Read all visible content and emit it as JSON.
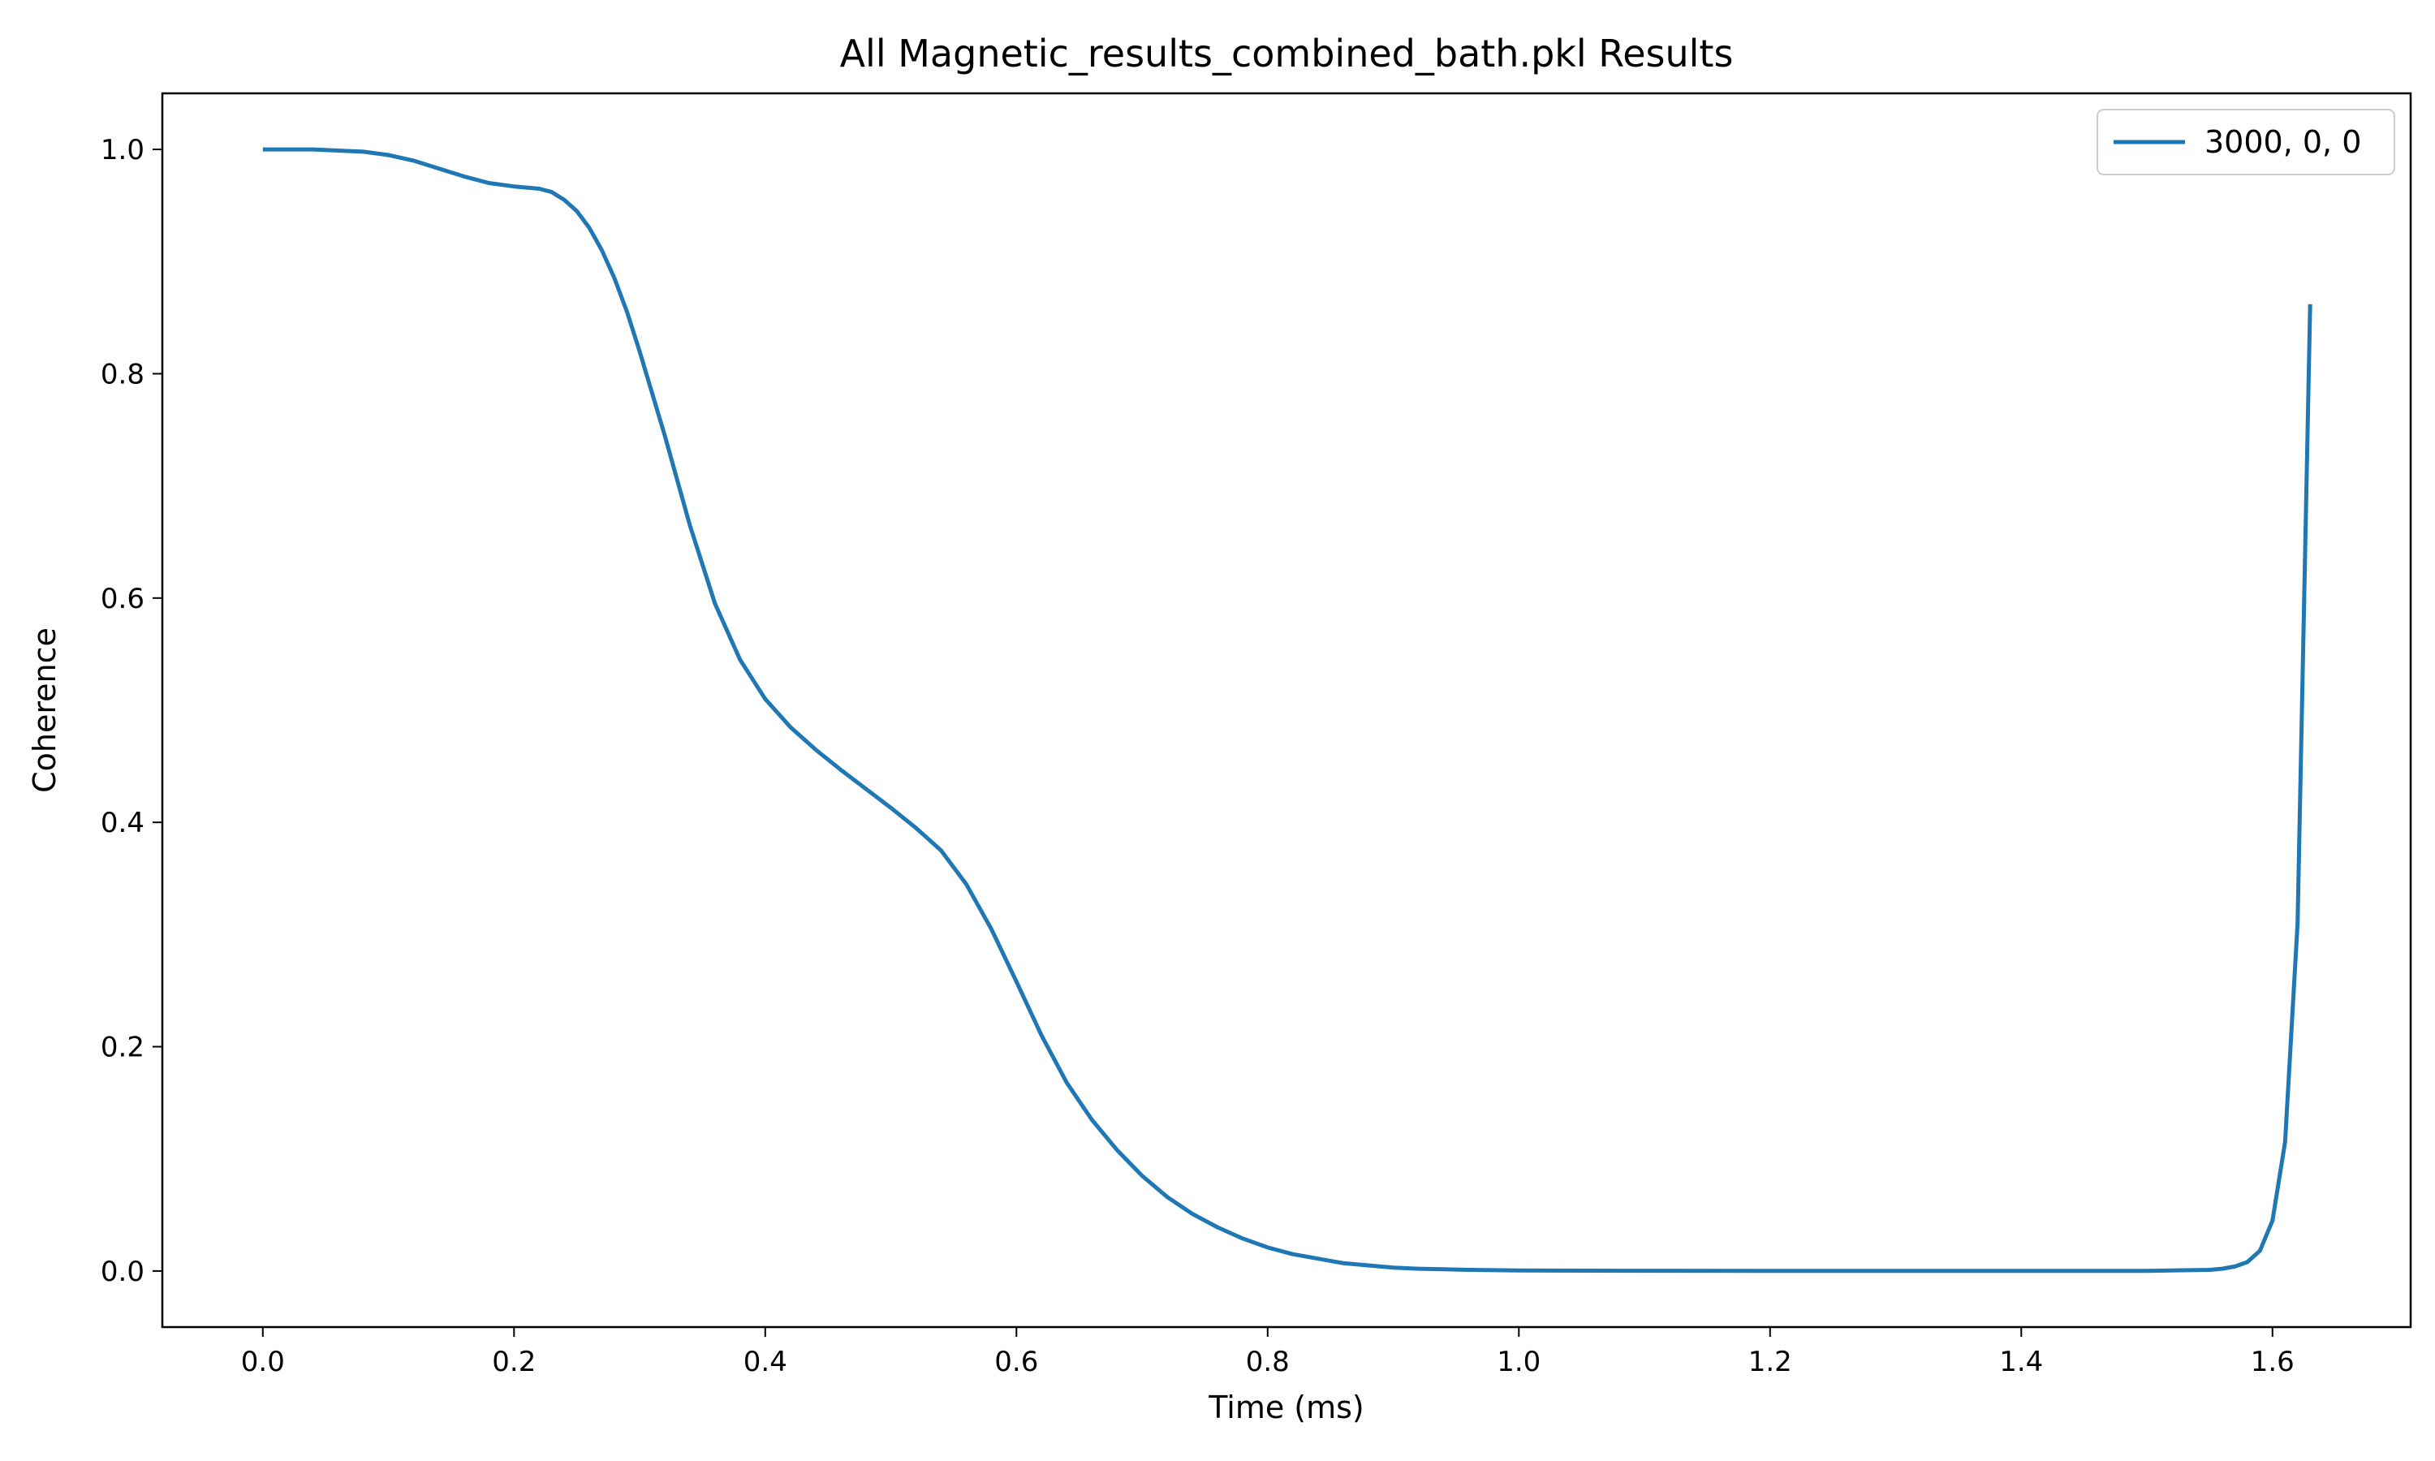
{
  "chart_data": {
    "type": "line",
    "title": "All Magnetic_results_combined_bath.pkl Results",
    "xlabel": "Time (ms)",
    "ylabel": "Coherence",
    "xlim": [
      -0.08,
      1.71
    ],
    "ylim": [
      -0.05,
      1.05
    ],
    "xticks": [
      0.0,
      0.2,
      0.4,
      0.6,
      0.8,
      1.0,
      1.2,
      1.4,
      1.6
    ],
    "xtick_labels": [
      "0.0",
      "0.2",
      "0.4",
      "0.6",
      "0.8",
      "1.0",
      "1.2",
      "1.4",
      "1.6"
    ],
    "yticks": [
      0.0,
      0.2,
      0.4,
      0.6,
      0.8,
      1.0
    ],
    "ytick_labels": [
      "0.0",
      "0.2",
      "0.4",
      "0.6",
      "0.8",
      "1.0"
    ],
    "grid": false,
    "legend_position": "top-right",
    "series": [
      {
        "name": "3000, 0, 0",
        "color": "#1f77b4",
        "x": [
          0.0,
          0.02,
          0.04,
          0.06,
          0.08,
          0.1,
          0.12,
          0.14,
          0.16,
          0.18,
          0.2,
          0.22,
          0.23,
          0.24,
          0.25,
          0.26,
          0.27,
          0.28,
          0.29,
          0.3,
          0.32,
          0.34,
          0.36,
          0.38,
          0.4,
          0.42,
          0.44,
          0.46,
          0.48,
          0.5,
          0.52,
          0.54,
          0.56,
          0.58,
          0.6,
          0.62,
          0.64,
          0.66,
          0.68,
          0.7,
          0.72,
          0.74,
          0.76,
          0.78,
          0.8,
          0.82,
          0.84,
          0.86,
          0.88,
          0.9,
          0.92,
          0.94,
          0.96,
          0.98,
          1.0,
          1.05,
          1.1,
          1.2,
          1.3,
          1.4,
          1.5,
          1.55,
          1.56,
          1.57,
          1.58,
          1.59,
          1.6,
          1.61,
          1.62,
          1.63
        ],
        "y": [
          1.0,
          1.0,
          1.0,
          0.999,
          0.998,
          0.995,
          0.99,
          0.983,
          0.976,
          0.97,
          0.967,
          0.965,
          0.962,
          0.955,
          0.945,
          0.93,
          0.91,
          0.885,
          0.855,
          0.82,
          0.745,
          0.665,
          0.595,
          0.545,
          0.51,
          0.485,
          0.465,
          0.447,
          0.43,
          0.413,
          0.395,
          0.375,
          0.345,
          0.305,
          0.258,
          0.21,
          0.168,
          0.135,
          0.108,
          0.085,
          0.066,
          0.051,
          0.039,
          0.029,
          0.021,
          0.015,
          0.011,
          0.007,
          0.005,
          0.003,
          0.002,
          0.0015,
          0.001,
          0.0007,
          0.0005,
          0.0003,
          0.0002,
          0.0001,
          0.0001,
          0.0001,
          0.0001,
          0.001,
          0.002,
          0.004,
          0.008,
          0.018,
          0.045,
          0.115,
          0.31,
          0.862
        ]
      }
    ]
  }
}
